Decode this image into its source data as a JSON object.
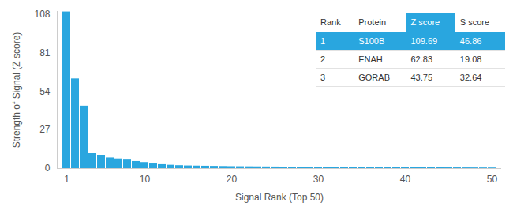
{
  "chart_data": {
    "type": "bar",
    "x_label": "Signal Rank (Top 50)",
    "y_label": "Strength of Signal (Z score)",
    "x": [
      1,
      2,
      3,
      4,
      5,
      6,
      7,
      8,
      9,
      10,
      11,
      12,
      13,
      14,
      15,
      16,
      17,
      18,
      19,
      20,
      21,
      22,
      23,
      24,
      25,
      26,
      27,
      28,
      29,
      30,
      31,
      32,
      33,
      34,
      35,
      36,
      37,
      38,
      39,
      40,
      41,
      42,
      43,
      44,
      45,
      46,
      47,
      48,
      49,
      50
    ],
    "values": [
      109.69,
      62.83,
      43.75,
      10.5,
      9.0,
      7.5,
      6.8,
      6.0,
      5.0,
      4.3,
      3.3,
      2.8,
      2.4,
      2.1,
      1.9,
      1.8,
      1.7,
      1.6,
      1.5,
      1.4,
      1.35,
      1.3,
      1.25,
      1.2,
      1.15,
      1.1,
      1.05,
      1.0,
      0.95,
      0.9,
      0.88,
      0.85,
      0.82,
      0.8,
      0.78,
      0.75,
      0.72,
      0.7,
      0.68,
      0.65,
      0.63,
      0.6,
      0.58,
      0.56,
      0.54,
      0.52,
      0.5,
      0.48,
      0.46,
      0.44
    ],
    "color": "#29a6df",
    "ylim": [
      0,
      110
    ],
    "yticks": [
      0,
      27,
      54,
      81,
      108
    ],
    "xticks": [
      1,
      10,
      20,
      30,
      40,
      50
    ],
    "grid": false,
    "table": {
      "columns": [
        "Rank",
        "Protein",
        "Z score",
        "S score"
      ],
      "rows": [
        [
          1,
          "S100B",
          109.69,
          46.86
        ],
        [
          2,
          "ENAH",
          62.83,
          19.08
        ],
        [
          3,
          "GORAB",
          43.75,
          32.64
        ]
      ]
    }
  }
}
